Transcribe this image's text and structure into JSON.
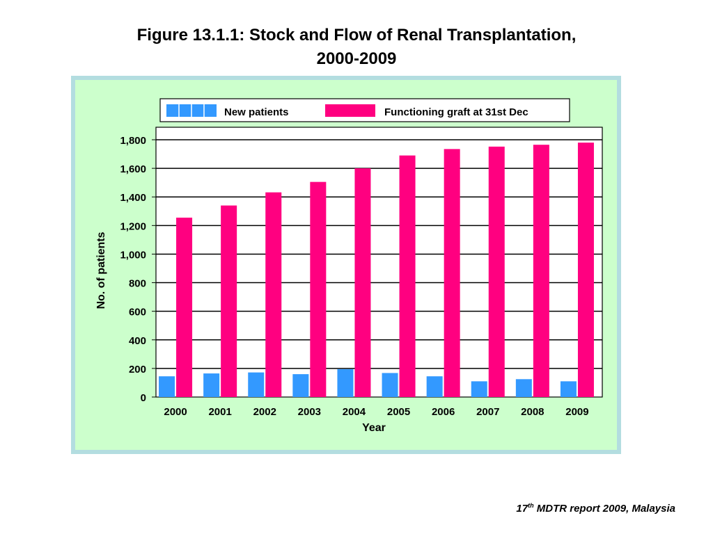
{
  "figure": {
    "title_line1": "Figure 13.1.1:   Stock and Flow of Renal Transplantation,",
    "title_line2": "2000-2009"
  },
  "footer": {
    "ordinal_number": "17",
    "ordinal_suffix": "th",
    "text": " MDTR report 2009, Malaysia"
  },
  "colors": {
    "panel_background": "#ccffcc",
    "panel_border": "#b3dde0",
    "new_patients": "#3399ff",
    "functioning_graft": "#ff0080"
  },
  "chart_data": {
    "type": "bar",
    "xlabel": "Year",
    "ylabel": "No. of patients",
    "ylim": [
      0,
      1800
    ],
    "yticks": [
      0,
      200,
      400,
      600,
      800,
      1000,
      1200,
      1400,
      1600,
      1800
    ],
    "ytick_labels": [
      "0",
      "200",
      "400",
      "600",
      "800",
      "1,000",
      "1,200",
      "1,400",
      "1,600",
      "1,800"
    ],
    "grid": true,
    "legend_position": "top",
    "categories": [
      "2000",
      "2001",
      "2002",
      "2003",
      "2004",
      "2005",
      "2006",
      "2007",
      "2008",
      "2009"
    ],
    "series": [
      {
        "name": "New patients",
        "color": "#3399ff",
        "values": [
          145,
          165,
          172,
          160,
          195,
          168,
          145,
          110,
          125,
          110
        ]
      },
      {
        "name": "Functioning graft at 31st Dec",
        "color": "#ff0080",
        "values": [
          1255,
          1340,
          1432,
          1505,
          1600,
          1690,
          1735,
          1752,
          1765,
          1780
        ]
      }
    ]
  }
}
